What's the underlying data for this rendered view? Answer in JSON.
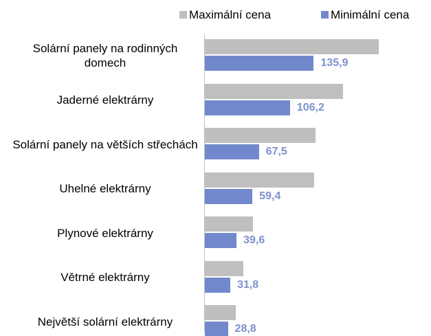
{
  "chart_data": {
    "type": "bar",
    "orientation": "horizontal",
    "categories": [
      "Solární panely na rodinných domech",
      "Jaderné elektrárny",
      "Solární panely na větších střechách",
      "Uhelné elektrárny",
      "Plynové elektrárny",
      "Větrné elektrárny",
      "Největší solární elektrárny"
    ],
    "series": [
      {
        "name": "Maximální cena",
        "color": "#bfbfbf",
        "values": [
          217,
          172,
          138,
          136,
          60,
          48,
          39
        ]
      },
      {
        "name": "Minimální cena",
        "color": "#7189cc",
        "values": [
          135.9,
          106.2,
          67.5,
          59.4,
          39.6,
          31.8,
          28.8
        ],
        "value_labels": [
          "135,9",
          "106,2",
          "67,5",
          "59,4",
          "39,6",
          "31,8",
          "28,8"
        ],
        "label_color": "#7d90cf"
      }
    ],
    "legend": "top"
  }
}
